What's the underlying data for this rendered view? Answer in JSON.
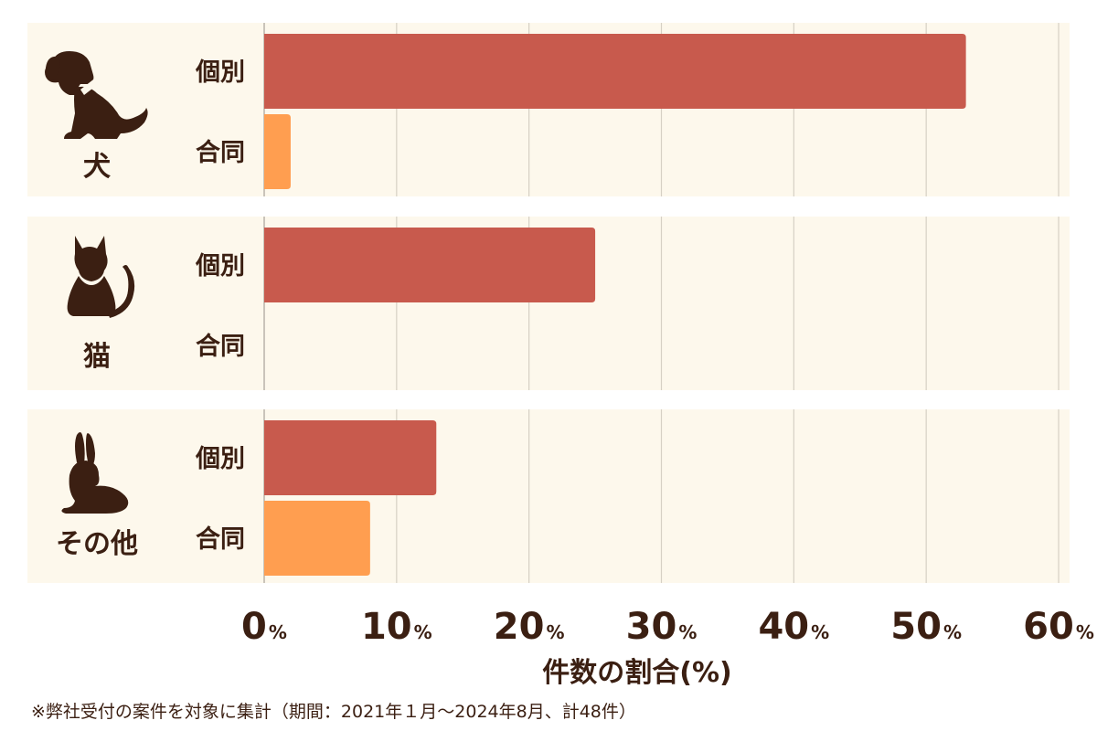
{
  "chart_data": {
    "type": "bar",
    "orientation": "horizontal",
    "categories": [
      "犬",
      "猫",
      "その他"
    ],
    "series": [
      {
        "name": "個別",
        "values": [
          53,
          25,
          13
        ],
        "color": "#c85a4d"
      },
      {
        "name": "合同",
        "values": [
          2,
          0,
          8
        ],
        "color": "#ff9e50"
      }
    ],
    "icons": [
      "dog-icon",
      "cat-icon",
      "rabbit-icon"
    ],
    "xlim": [
      0,
      60
    ],
    "xticks": [
      0,
      10,
      20,
      30,
      40,
      50,
      60
    ],
    "tick_unit": "%",
    "xlabel": "件数の割合(%)",
    "grid": true
  },
  "footnote": "※弊社受付の案件を対象に集計（期間：2021年１月〜2024年8月、計48件）"
}
